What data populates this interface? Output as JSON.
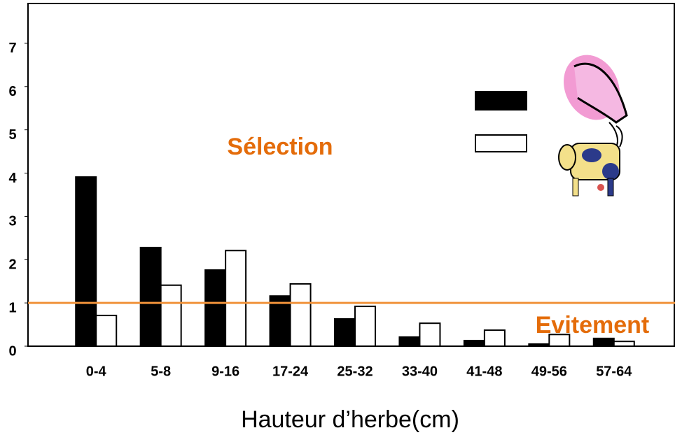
{
  "chart_data": {
    "type": "bar",
    "categories": [
      "0-4",
      "5-8",
      "9-16",
      "17-24",
      "25-32",
      "33-40",
      "41-48",
      "49-56",
      "57-64"
    ],
    "series": [
      {
        "color": "#000000",
        "values": [
          3.91,
          2.28,
          1.76,
          1.16,
          0.63,
          0.21,
          0.13,
          0.05,
          0.18
        ]
      },
      {
        "color": "#ffffff",
        "values": [
          0.71,
          1.41,
          2.21,
          1.44,
          0.92,
          0.53,
          0.37,
          0.27,
          0.11
        ]
      }
    ],
    "ylim": [
      0,
      7.92
    ],
    "yticks": [
      0,
      1,
      2,
      3,
      4,
      5,
      6,
      7
    ],
    "x_label": "Hauteur d’herbe(cm)",
    "reference_line": {
      "value": 1,
      "color": "#f0923a"
    },
    "annotations": [
      {
        "text": "Sélection",
        "color": "#e46c0a"
      },
      {
        "text": "Evitement",
        "color": "#e46c0a"
      }
    ]
  }
}
